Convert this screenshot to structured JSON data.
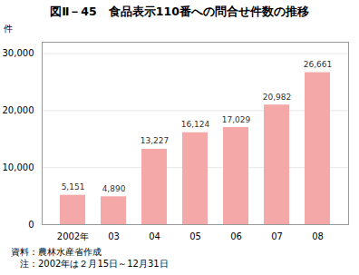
{
  "chart_data": {
    "type": "bar",
    "title": "図Ⅱ－45　食品表示110番への問合せ件数の推移",
    "categories": [
      "2002年",
      "03",
      "04",
      "05",
      "06",
      "07",
      "08"
    ],
    "values": [
      5151,
      4890,
      13227,
      16124,
      17029,
      20982,
      26661
    ],
    "value_labels": [
      "5,151",
      "4,890",
      "13,227",
      "16,124",
      "17,029",
      "20,982",
      "26,661"
    ],
    "data_labels": true,
    "color": "#f5a8a8",
    "ylabel": "件",
    "ylim": [
      0,
      32000
    ],
    "yticks": [
      0,
      {
        "value": 10000,
        "label": "10,000"
      },
      {
        "value": 20000,
        "label": "20,000"
      },
      {
        "value": 30000,
        "label": "30,000"
      }
    ],
    "grid": true,
    "annotations": [
      "資料：農林水産省作成",
      "　注：2002年は２月15日～12月31日"
    ]
  }
}
